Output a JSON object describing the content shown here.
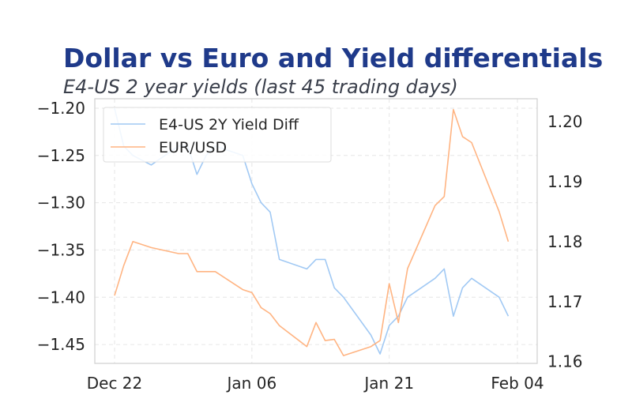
{
  "chart_data": {
    "type": "line",
    "title": "Dollar vs Euro and Yield differentials",
    "subtitle": "E4-US 2 year yields (last 45 trading days)",
    "x_tick_labels": [
      "Dec 22",
      "Jan 06",
      "Jan 21",
      "Feb 04"
    ],
    "x_tick_dates": [
      "2025-12-22",
      "2026-01-06",
      "2026-01-21",
      "2026-02-04"
    ],
    "xlim": [
      "2025-12-22",
      "2026-02-04"
    ],
    "left_axis": {
      "ylim": [
        -1.47,
        -1.19
      ],
      "ticks": [
        -1.45,
        -1.4,
        -1.35,
        -1.3,
        -1.25,
        -1.2
      ],
      "tick_labels": [
        "−1.45",
        "−1.40",
        "−1.35",
        "−1.30",
        "−1.25",
        "−1.20"
      ]
    },
    "right_axis": {
      "ylim": [
        1.1597,
        1.2038
      ],
      "ticks": [
        1.16,
        1.17,
        1.18,
        1.19,
        1.2
      ],
      "tick_labels": [
        "1.16",
        "1.17",
        "1.18",
        "1.19",
        "1.20"
      ]
    },
    "grid": true,
    "legend": {
      "position": "top-left",
      "entries": [
        "E4-US 2Y Yield Diff",
        "EUR/USD"
      ]
    },
    "colors": {
      "yield": "#a1c9f4",
      "eurusd": "#ffb482",
      "title": "#1f3a8a",
      "subtitle": "#3a3f4b"
    },
    "series": [
      {
        "name": "E4-US 2Y Yield Diff",
        "axis": "left",
        "x": [
          "2025-12-22",
          "2025-12-23",
          "2025-12-24",
          "2025-12-26",
          "2025-12-29",
          "2025-12-30",
          "2025-12-31",
          "2026-01-01",
          "2026-01-02",
          "2026-01-05",
          "2026-01-06",
          "2026-01-07",
          "2026-01-08",
          "2026-01-09",
          "2026-01-12",
          "2026-01-13",
          "2026-01-14",
          "2026-01-15",
          "2026-01-16",
          "2026-01-19",
          "2026-01-20",
          "2026-01-21",
          "2026-01-22",
          "2026-01-23",
          "2026-01-26",
          "2026-01-27",
          "2026-01-28",
          "2026-01-29",
          "2026-01-30",
          "2026-02-02",
          "2026-02-03"
        ],
        "values": [
          -1.2,
          -1.24,
          -1.25,
          -1.26,
          -1.24,
          -1.24,
          -1.27,
          -1.25,
          -1.24,
          -1.25,
          -1.28,
          -1.3,
          -1.31,
          -1.36,
          -1.37,
          -1.36,
          -1.36,
          -1.39,
          -1.4,
          -1.44,
          -1.46,
          -1.43,
          -1.42,
          -1.4,
          -1.38,
          -1.37,
          -1.42,
          -1.39,
          -1.38,
          -1.4,
          -1.42
        ]
      },
      {
        "name": "EUR/USD",
        "axis": "right",
        "x": [
          "2025-12-22",
          "2025-12-23",
          "2025-12-24",
          "2025-12-26",
          "2025-12-29",
          "2025-12-30",
          "2025-12-31",
          "2026-01-02",
          "2026-01-05",
          "2026-01-06",
          "2026-01-07",
          "2026-01-08",
          "2026-01-09",
          "2026-01-12",
          "2026-01-13",
          "2026-01-14",
          "2026-01-15",
          "2026-01-16",
          "2026-01-19",
          "2026-01-20",
          "2026-01-21",
          "2026-01-22",
          "2026-01-23",
          "2026-01-26",
          "2026-01-27",
          "2026-01-28",
          "2026-01-29",
          "2026-01-30",
          "2026-02-02",
          "2026-02-03"
        ],
        "values": [
          1.171,
          1.176,
          1.18,
          1.179,
          1.178,
          1.178,
          1.175,
          1.175,
          1.172,
          1.1715,
          1.169,
          1.168,
          1.166,
          1.1625,
          1.1665,
          1.1635,
          1.1637,
          1.161,
          1.1625,
          1.1635,
          1.173,
          1.1665,
          1.1755,
          1.186,
          1.1875,
          1.202,
          1.1975,
          1.1965,
          1.185,
          1.18
        ]
      }
    ]
  }
}
